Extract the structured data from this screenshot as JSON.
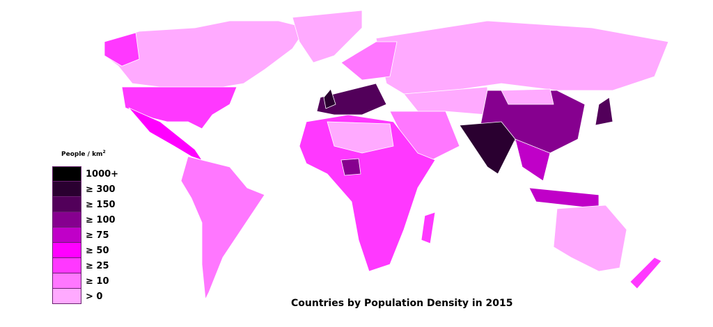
{
  "title": "Countries by Population Density in 2015",
  "legend": {
    "title": "People / km",
    "title_sup": "2",
    "items": [
      {
        "label": "1000+",
        "color": "#000000"
      },
      {
        "label": "≥ 300",
        "color": "#2a0030"
      },
      {
        "label": "≥ 150",
        "color": "#52005a"
      },
      {
        "label": "≥ 100",
        "color": "#86008f"
      },
      {
        "label": "≥ 75",
        "color": "#c000c8"
      },
      {
        "label": "≥ 50",
        "color": "#ff00ff"
      },
      {
        "label": "≥ 25",
        "color": "#ff38ff"
      },
      {
        "label": "≥ 10",
        "color": "#ff77ff"
      },
      {
        "label": "> 0",
        "color": "#ffaaff"
      }
    ]
  }
}
